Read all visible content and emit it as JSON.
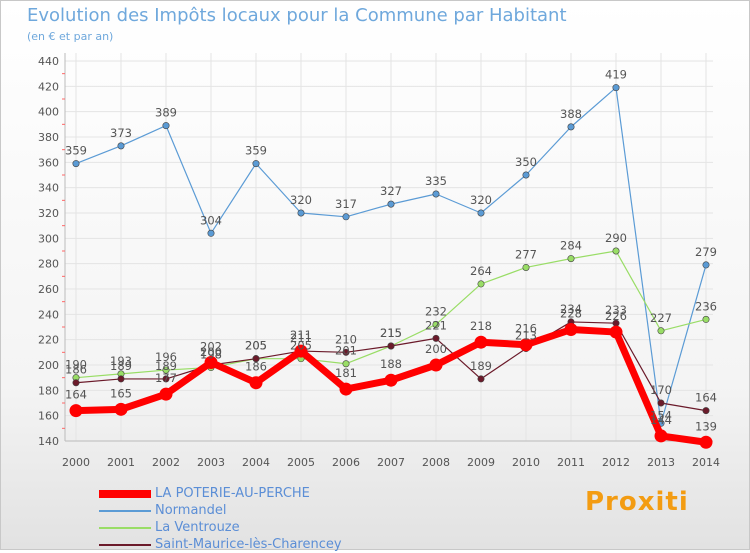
{
  "chart_data": {
    "type": "line",
    "title": "Evolution des Impôts locaux pour la Commune par Habitant",
    "subtitle": "(en € et par an)",
    "xlabel": "",
    "ylabel": "",
    "x": [
      "2000",
      "2001",
      "2002",
      "2003",
      "2004",
      "2005",
      "2006",
      "2007",
      "2008",
      "2009",
      "2010",
      "2011",
      "2012",
      "2013",
      "2014"
    ],
    "ylim": [
      140,
      440
    ],
    "ytick_step": 20,
    "grid": true,
    "legend_position": "bottom-left",
    "series": [
      {
        "name": "Normandel",
        "color": "#5b9bd5",
        "values": [
          359,
          373,
          389,
          304,
          359,
          320,
          317,
          327,
          335,
          320,
          350,
          388,
          419,
          154,
          279
        ]
      },
      {
        "name": "La Ventrouze",
        "color": "#99dd66",
        "values": [
          190,
          193,
          196,
          198,
          205,
          205,
          201,
          215,
          232,
          264,
          277,
          284,
          290,
          227,
          236
        ]
      },
      {
        "name": "Saint-Maurice-lès-Charencey",
        "color": "#6b1a2a",
        "values": [
          186,
          189,
          189,
          200,
          205,
          211,
          210,
          215,
          221,
          189,
          213,
          234,
          233,
          170,
          164
        ]
      },
      {
        "name": "LA POTERIE-AU-PERCHE",
        "color": "#ff0000",
        "values": [
          164,
          165,
          177,
          202,
          186,
          211,
          181,
          188,
          200,
          218,
          216,
          228,
          226,
          144,
          139
        ]
      }
    ],
    "data_labels_plain": {
      "Normandel": [
        "359",
        "373",
        "389",
        "304",
        "359",
        "320",
        "317",
        "327",
        "335",
        "320",
        "350",
        "388",
        "419",
        "154",
        "279"
      ],
      "La Ventrouze": [
        "190",
        "193",
        "196",
        "198",
        "205",
        "205",
        "201",
        "215",
        "232",
        "264",
        "277",
        "284",
        "290",
        "227",
        "236"
      ],
      "Saint-Maurice-lès-Charencey": [
        "186",
        "189",
        "189",
        "200",
        "205",
        "211",
        "210",
        "215",
        "221",
        "189",
        "213",
        "234",
        "233",
        "170",
        "164"
      ],
      "LA POTERIE-AU-PERCHE": [
        "164",
        "165",
        "177",
        "202",
        "186",
        "211",
        "181",
        "188",
        "200",
        "218",
        "216",
        "228",
        "226",
        "144",
        "139"
      ]
    }
  },
  "legend": [
    {
      "label": "LA POTERIE-AU-PERCHE",
      "color": "#ff0000"
    },
    {
      "label": "Normandel",
      "color": "#5b9bd5"
    },
    {
      "label": "La Ventrouze",
      "color": "#99dd66"
    },
    {
      "label": "Saint-Maurice-lès-Charencey",
      "color": "#6b1a2a"
    }
  ],
  "logo": {
    "text": "Proxiti"
  }
}
